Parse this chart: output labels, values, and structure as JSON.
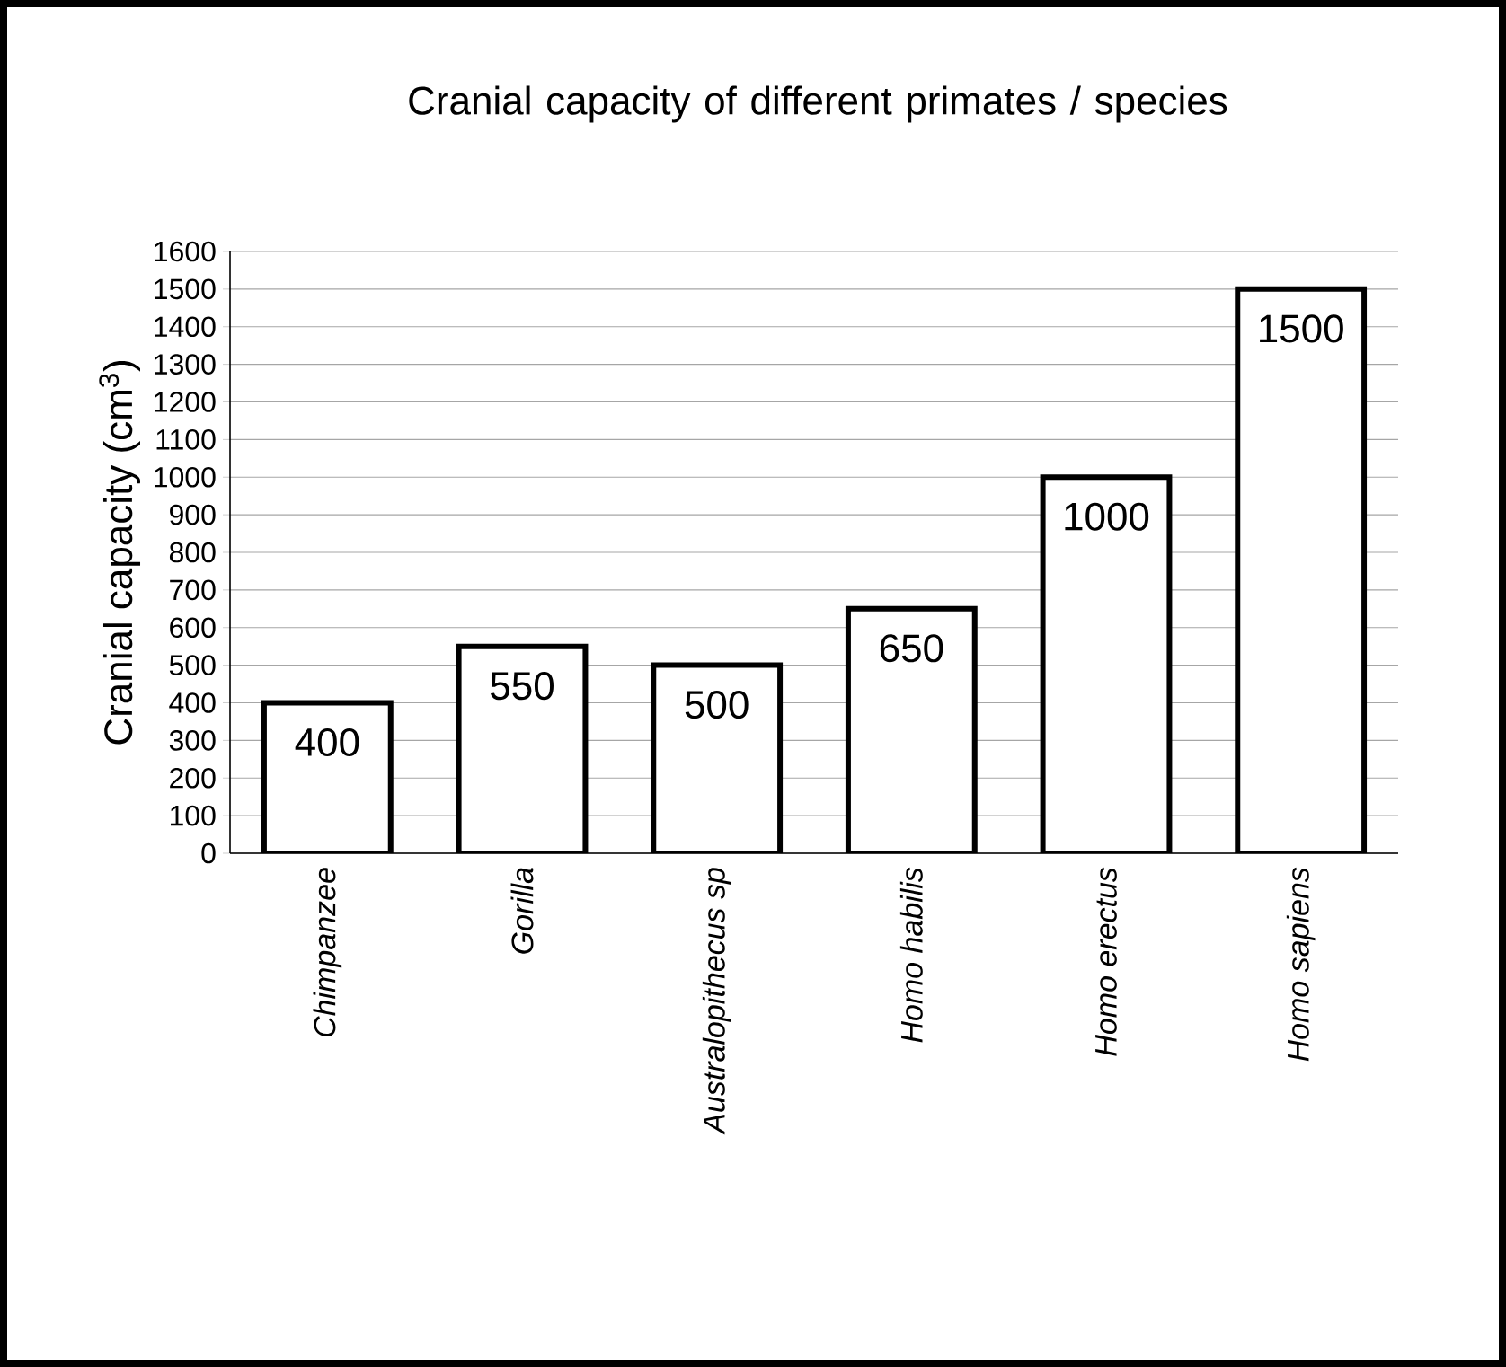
{
  "chart_data": {
    "type": "bar",
    "title": "Cranial capacity of different primates / species",
    "ylabel": "Cranial capacity (cm$^{3}$)",
    "categories": [
      "Chimpanzee",
      "Gorilla",
      "Australopithecus sp",
      "Homo habilis",
      "Homo erectus",
      "Homo sapiens"
    ],
    "values": [
      400,
      550,
      500,
      650,
      1000,
      1500
    ],
    "color": "#ffffff",
    "ylim": [
      0,
      1600
    ],
    "yticks": [
      0,
      100,
      200,
      300,
      400,
      500,
      600,
      700,
      800,
      900,
      1000,
      1100,
      1200,
      1300,
      1400,
      1500,
      1600
    ],
    "grid": "y",
    "data_labels": true
  }
}
